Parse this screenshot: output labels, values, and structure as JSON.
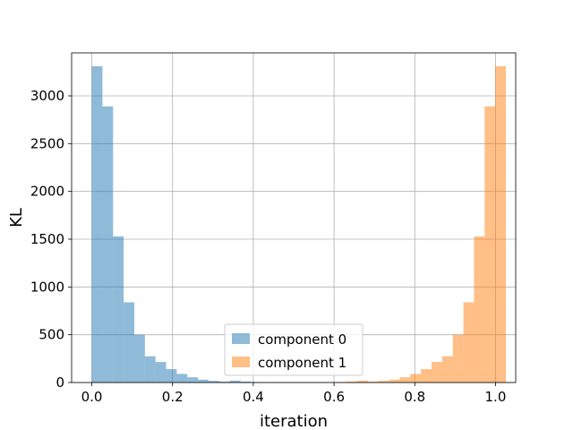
{
  "chart_data": {
    "type": "bar",
    "subtype": "histogram",
    "xlabel": "iteration",
    "ylabel": "KL",
    "xlim": [
      -0.05,
      1.05
    ],
    "ylim": [
      0,
      3450
    ],
    "xticks": [
      0.0,
      0.2,
      0.4,
      0.6,
      0.8,
      1.0
    ],
    "xtick_labels": [
      "0.0",
      "0.2",
      "0.4",
      "0.6",
      "0.8",
      "1.0"
    ],
    "yticks": [
      0,
      500,
      1000,
      1500,
      2000,
      2500,
      3000
    ],
    "ytick_labels": [
      "0",
      "500",
      "1000",
      "1500",
      "2000",
      "2500",
      "3000"
    ],
    "grid": true,
    "legend_position": "bottom-center",
    "bin_width": 0.0263,
    "series": [
      {
        "name": "component 0",
        "color": "#1f77b4",
        "alpha": 0.5,
        "bin_edges_start": 0.0,
        "values": [
          3310,
          2890,
          1530,
          840,
          500,
          275,
          215,
          140,
          90,
          55,
          30,
          18,
          10,
          20,
          10,
          5,
          3,
          2,
          1,
          1,
          0,
          0,
          0,
          0,
          0,
          0,
          0,
          0,
          0,
          0,
          0,
          0,
          0,
          0,
          0,
          0,
          0,
          0
        ]
      },
      {
        "name": "component 1",
        "color": "#ff7f0e",
        "alpha": 0.5,
        "bin_edges_start": 0.0,
        "values": [
          0,
          0,
          0,
          0,
          0,
          0,
          0,
          0,
          0,
          0,
          0,
          0,
          0,
          0,
          0,
          0,
          0,
          0,
          0,
          1,
          1,
          2,
          3,
          5,
          10,
          20,
          10,
          18,
          30,
          55,
          90,
          140,
          215,
          275,
          500,
          840,
          1530,
          2890,
          3310
        ]
      }
    ]
  }
}
